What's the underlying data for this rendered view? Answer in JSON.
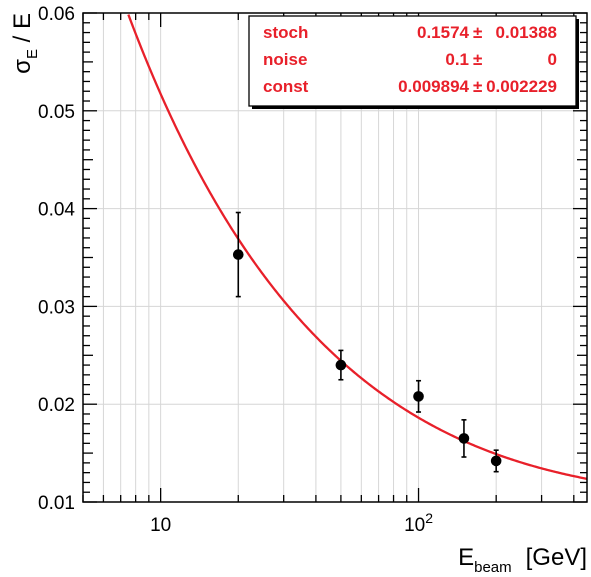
{
  "chart_data": {
    "type": "scatter",
    "x_scale": "log",
    "y_scale": "linear",
    "xlim": [
      5,
      450
    ],
    "ylim": [
      0.01,
      0.06
    ],
    "grid": true,
    "xlabel": {
      "main": "E",
      "sub": "beam",
      "unit": "[GeV]"
    },
    "ylabel": {
      "main": "σ",
      "sub": "E",
      "rest": " / E"
    },
    "x_ticks": [
      {
        "value": 10,
        "label_base": "10",
        "label_exp": ""
      },
      {
        "value": 100,
        "label_base": "10",
        "label_exp": "2"
      }
    ],
    "y_ticks": [
      {
        "value": 0.01,
        "label": "0.01"
      },
      {
        "value": 0.02,
        "label": "0.02"
      },
      {
        "value": 0.03,
        "label": "0.03"
      },
      {
        "value": 0.04,
        "label": "0.04"
      },
      {
        "value": 0.05,
        "label": "0.05"
      },
      {
        "value": 0.06,
        "label": "0.06"
      }
    ],
    "data_points": [
      {
        "x": 20,
        "y": 0.0353,
        "err": 0.0043
      },
      {
        "x": 50,
        "y": 0.024,
        "err": 0.0015
      },
      {
        "x": 100,
        "y": 0.0208,
        "err": 0.0016
      },
      {
        "x": 150,
        "y": 0.0165,
        "err": 0.0019
      },
      {
        "x": 200,
        "y": 0.0142,
        "err": 0.0011
      }
    ],
    "fit": {
      "function": "sqrt((stoch/sqrt(E))^2 + (noise/E)^2 + const^2)",
      "stoch": 0.1574,
      "noise": 0.1,
      "const": 0.009894,
      "color": "#e8202a"
    },
    "marker_color": "#000000",
    "stats_box": {
      "placement": "top-right",
      "rows": [
        {
          "name": "stoch",
          "value": "0.1574",
          "pm": "±",
          "error": "0.01388"
        },
        {
          "name": "noise",
          "value": "0.1",
          "pm": "±",
          "error": "0"
        },
        {
          "name": "const",
          "value": "0.009894",
          "pm": "±",
          "error": "0.002229"
        }
      ]
    }
  }
}
